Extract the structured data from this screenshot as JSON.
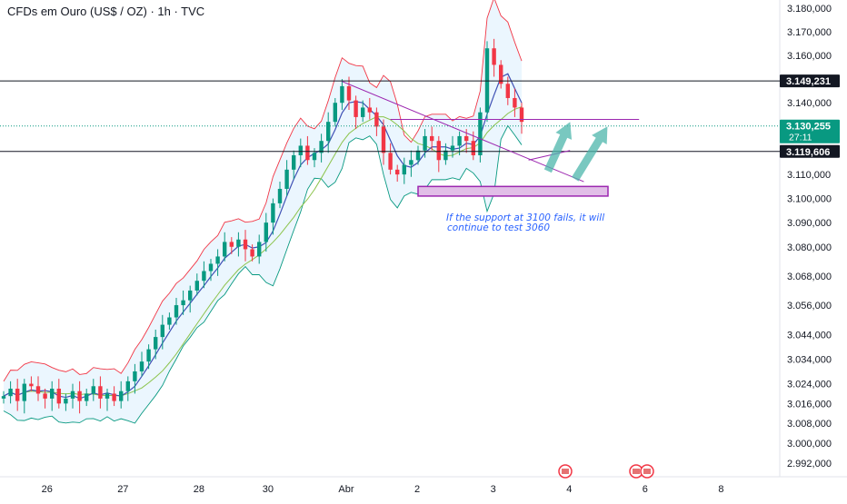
{
  "header": {
    "symbol": "CFDs em Ouro (US$ / OZ) · 1h · TVC"
  },
  "annotation": {
    "line1": "If the support at 3100 fails, it will",
    "line2": "continue to test 3060"
  },
  "price_labels": {
    "resistance": "3.149,231",
    "current_price": "3.130,255",
    "countdown": "27:11",
    "support": "3.119,606"
  },
  "colors": {
    "up": "#089981",
    "down": "#f23645",
    "band_upper": "#f23645",
    "band_lower": "#089981",
    "band_fill": "#e3f2fd",
    "ma_fast": "#3f51b5",
    "ma_slow": "#8bc34a",
    "triangle": "#9c27b0",
    "zone_fill": "#e1bee7",
    "zone_border": "#9c27b0",
    "arrow": "#4db6ac"
  },
  "chart_data": {
    "type": "candlestick",
    "y_scale": "log",
    "ylim": [
      2988,
      3182
    ],
    "y_ticks": [
      "3.180,000",
      "3.170,000",
      "3.160,000",
      "3.140,000",
      "3.130,000",
      "3.110,000",
      "3.100,000",
      "3.090,000",
      "3.080,000",
      "3.068,000",
      "3.056,000",
      "3.044,000",
      "3.034,000",
      "3.024,000",
      "3.016,000",
      "3.008,000",
      "3.000,000",
      "2.992,000"
    ],
    "y_tick_values": [
      3180,
      3170,
      3160,
      3140,
      3130,
      3110,
      3100,
      3090,
      3080,
      3068,
      3056,
      3044,
      3034,
      3024,
      3016,
      3008,
      3000,
      2992
    ],
    "x_labels": [
      "26",
      "27",
      "28",
      "30",
      "Abr",
      "2",
      "3",
      "4",
      "6",
      "8"
    ],
    "x_label_bar_index": [
      6,
      17,
      28,
      38,
      49,
      60,
      71,
      82,
      93,
      104
    ],
    "candles_close": [
      3019,
      3022,
      3017,
      3024,
      3023,
      3020,
      3018,
      3022,
      3016,
      3018,
      3021,
      3017,
      3020,
      3023,
      3018,
      3020,
      3017,
      3021,
      3025,
      3029,
      3033,
      3038,
      3043,
      3048,
      3051,
      3056,
      3058,
      3062,
      3066,
      3070,
      3073,
      3076,
      3082,
      3080,
      3083,
      3079,
      3076,
      3082,
      3090,
      3098,
      3104,
      3112,
      3118,
      3122,
      3116,
      3119,
      3124,
      3132,
      3140,
      3147,
      3141,
      3134,
      3138,
      3136,
      3130,
      3119,
      3112,
      3110,
      3114,
      3116,
      3120,
      3126,
      3124,
      3116,
      3120,
      3122,
      3126,
      3124,
      3118,
      3136,
      3163,
      3156,
      3148,
      3142,
      3138,
      3132
    ],
    "candle_opens_first": 3018,
    "resistance_level": 3149.231,
    "support_level": 3119.606,
    "current_price": 3130.255,
    "support_zone": [
      3101,
      3105
    ],
    "annotation_text": "If the support at 3100 fails, it will continue to test 3060"
  }
}
